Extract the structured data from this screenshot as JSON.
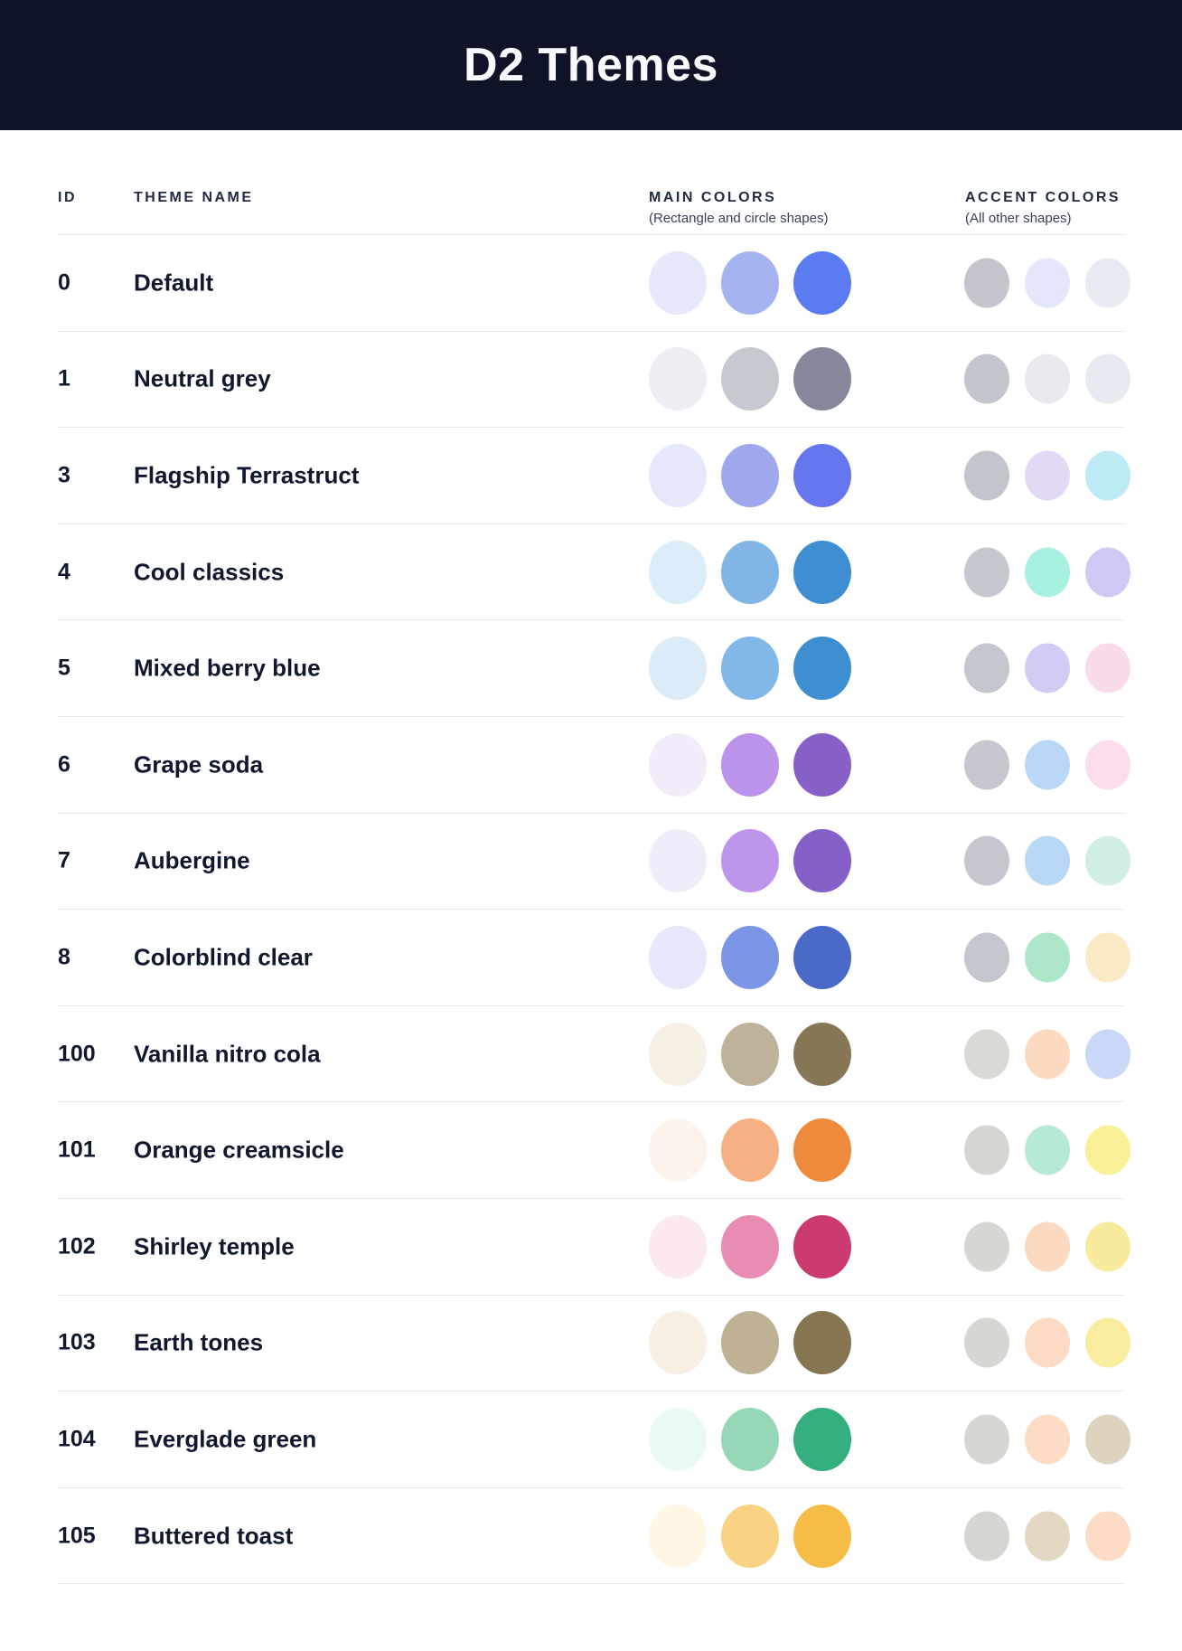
{
  "header": {
    "title": "D2 Themes"
  },
  "table": {
    "columns": {
      "id": "ID",
      "theme_name": "THEME NAME",
      "main_colors": "MAIN COLORS",
      "main_colors_note": "(Rectangle and circle shapes)",
      "accent_colors": "ACCENT COLORS",
      "accent_colors_note": "(All other shapes)"
    },
    "rows": [
      {
        "id": "0",
        "name": "Default",
        "main": [
          "#E6E9FB",
          "#A5B3F1",
          "#5B7CF1"
        ],
        "accent": [
          "#C4C5CD",
          "#E4E7FB",
          "#E9EBF3"
        ]
      },
      {
        "id": "1",
        "name": "Neutral grey",
        "main": [
          "#ECEEF3",
          "#C7C9D1",
          "#85889B"
        ],
        "accent": [
          "#C4C6CE",
          "#E8EAF0",
          "#E8EAF1"
        ]
      },
      {
        "id": "3",
        "name": "Flagship Terrastruct",
        "main": [
          "#E5E8FA",
          "#9FA8EC",
          "#6576EE"
        ],
        "accent": [
          "#C3C5CD",
          "#E2DAF5",
          "#BCEAF5"
        ]
      },
      {
        "id": "4",
        "name": "Cool classics",
        "main": [
          "#DCEDFA",
          "#80B5E6",
          "#3E8ED1"
        ],
        "accent": [
          "#C6C8CF",
          "#A8F1E1",
          "#D0C9F5"
        ]
      },
      {
        "id": "5",
        "name": "Mixed berry blue",
        "main": [
          "#DCEBF8",
          "#82B8E8",
          "#3E8ED2"
        ],
        "accent": [
          "#C5C7CF",
          "#D4CBF5",
          "#FADBEB"
        ]
      },
      {
        "id": "6",
        "name": "Grape soda",
        "main": [
          "#F1EBFA",
          "#BC93EA",
          "#8761C7"
        ],
        "accent": [
          "#C6C7CF",
          "#BAD7F8",
          "#FBDDEE"
        ]
      },
      {
        "id": "7",
        "name": "Aubergine",
        "main": [
          "#F1ECFA",
          "#BD96EC",
          "#8460C8"
        ],
        "accent": [
          "#C5C6CE",
          "#B9D8F8",
          "#D1EFE7"
        ]
      },
      {
        "id": "8",
        "name": "Colorblind clear",
        "main": [
          "#E5E9FB",
          "#7B96E4",
          "#4A69C8"
        ],
        "accent": [
          "#C5C7CF",
          "#ADE7C9",
          "#FBEAC6"
        ]
      },
      {
        "id": "100",
        "name": "Vanilla nitro cola",
        "main": [
          "#F6EFE4",
          "#BEB29A",
          "#867757"
        ],
        "accent": [
          "#DAD9D5",
          "#FCDAC2",
          "#CAD8F7"
        ]
      },
      {
        "id": "101",
        "name": "Orange creamsicle",
        "main": [
          "#FDF3ED",
          "#F7B083",
          "#ED8A3B"
        ],
        "accent": [
          "#D6D5D1",
          "#B6EAD5",
          "#FAF096"
        ]
      },
      {
        "id": "102",
        "name": "Shirley temple",
        "main": [
          "#FBE8F1",
          "#E98CB3",
          "#CB3B70"
        ],
        "accent": [
          "#D7D6D2",
          "#FCDAC2",
          "#F9EB9E"
        ]
      },
      {
        "id": "103",
        "name": "Earth tones",
        "main": [
          "#F8EFE3",
          "#BFB294",
          "#857651"
        ],
        "accent": [
          "#D7D6D2",
          "#FCDAC3",
          "#FAEC9E"
        ]
      },
      {
        "id": "104",
        "name": "Everglade green",
        "main": [
          "#E9FAF2",
          "#96D7B7",
          "#35AF7D"
        ],
        "accent": [
          "#D7D6D2",
          "#FDDCC5",
          "#DED3BF"
        ]
      },
      {
        "id": "105",
        "name": "Buttered toast",
        "main": [
          "#FFF6E5",
          "#FAD283",
          "#F6BC47"
        ],
        "accent": [
          "#D6D5D1",
          "#E2D8C4",
          "#FCDCC6"
        ]
      }
    ]
  },
  "colors": {
    "banner_bg": "#0E1327",
    "banner_text": "#F8F9FD",
    "row_text": "#10182F",
    "column_header_text": "#222B45",
    "separator": "#E4E6F0"
  }
}
